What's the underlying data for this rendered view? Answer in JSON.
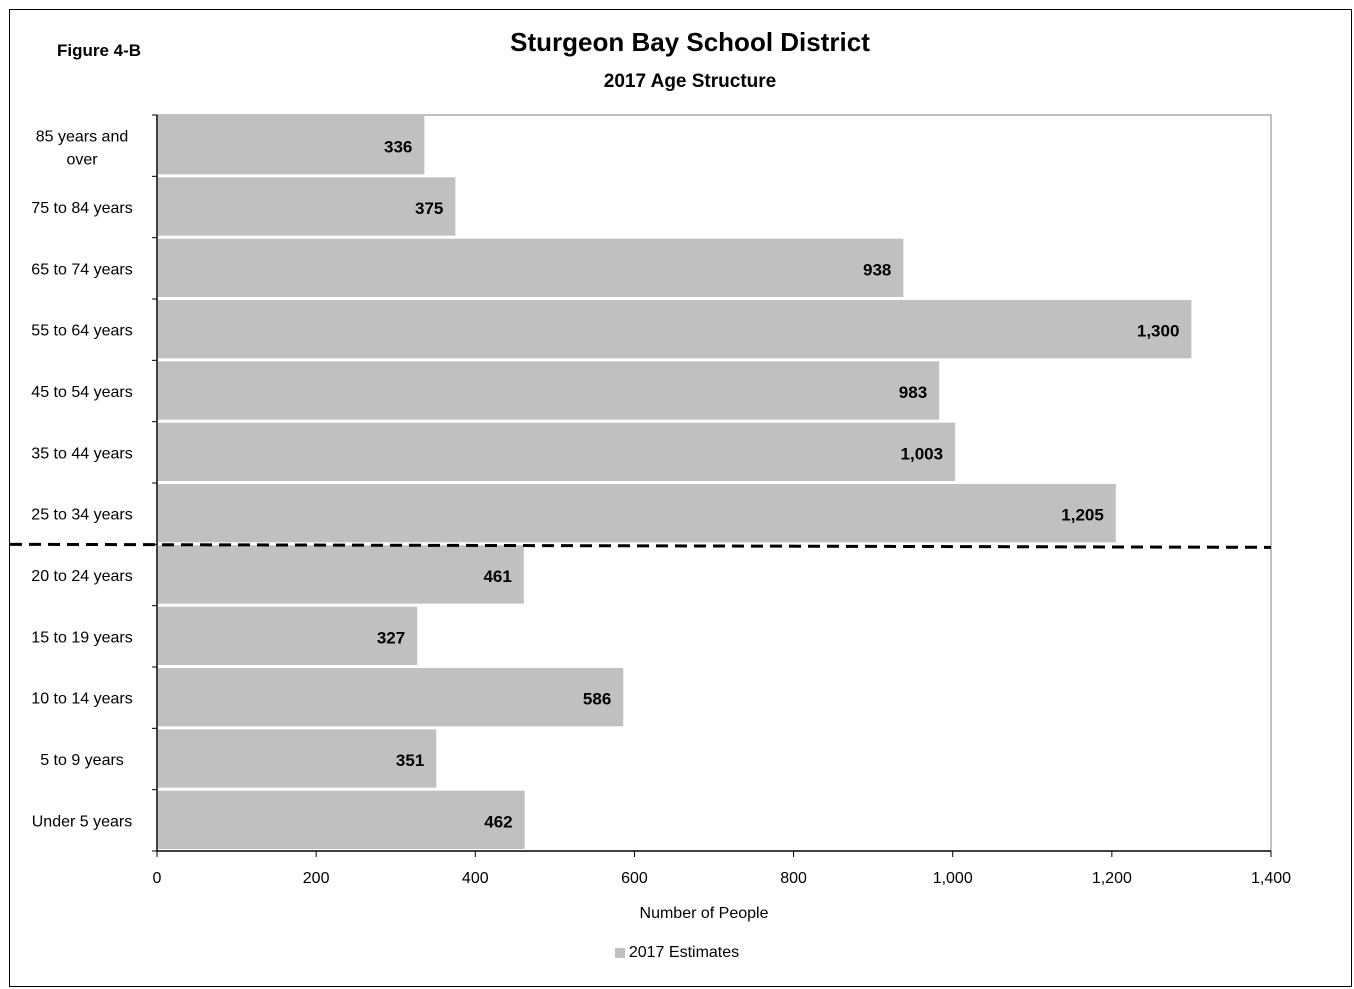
{
  "figure_label": "Figure 4-B",
  "colors": {
    "bar": "#c0c0c0",
    "axis": "#000000",
    "divider": "#000000"
  },
  "chart_data": {
    "type": "bar",
    "orientation": "horizontal",
    "title": "Sturgeon Bay School District",
    "subtitle": "2017 Age Structure",
    "xlabel": "Number of People",
    "ylabel": "",
    "xlim": [
      0,
      1400
    ],
    "x_ticks": [
      0,
      200,
      400,
      600,
      800,
      1000,
      1200,
      1400
    ],
    "x_tick_labels": [
      "0",
      "200",
      "400",
      "600",
      "800",
      "1,000",
      "1,200",
      "1,400"
    ],
    "categories": [
      "85 years and over",
      "75 to 84 years",
      "65 to 74 years",
      "55 to 64 years",
      "45 to 54 years",
      "35 to 44 years",
      "25 to 34 years",
      "20 to 24 years",
      "15 to 19 years",
      "10 to 14 years",
      "5 to 9 years",
      "Under 5 years"
    ],
    "category_display": [
      [
        "85 years and",
        "over"
      ],
      [
        "75 to 84 years"
      ],
      [
        "65 to 74 years"
      ],
      [
        "55 to 64 years"
      ],
      [
        "45 to 54 years"
      ],
      [
        "35 to 44 years"
      ],
      [
        "25 to 34 years"
      ],
      [
        "20 to 24 years"
      ],
      [
        "15 to 19 years"
      ],
      [
        "10 to 14 years"
      ],
      [
        "5 to 9 years"
      ],
      [
        "Under 5 years"
      ]
    ],
    "series": [
      {
        "name": "2017 Estimates",
        "values": [
          336,
          375,
          938,
          1300,
          983,
          1003,
          1205,
          461,
          327,
          586,
          351,
          462
        ],
        "value_labels": [
          "336",
          "375",
          "938",
          "1,300",
          "983",
          "1,003",
          "1,205",
          "461",
          "327",
          "586",
          "351",
          "462"
        ]
      }
    ],
    "divider": {
      "style": "dashed",
      "between": [
        "25 to 34 years",
        "20 to 24 years"
      ]
    },
    "grid": false,
    "legend_position": "bottom"
  }
}
